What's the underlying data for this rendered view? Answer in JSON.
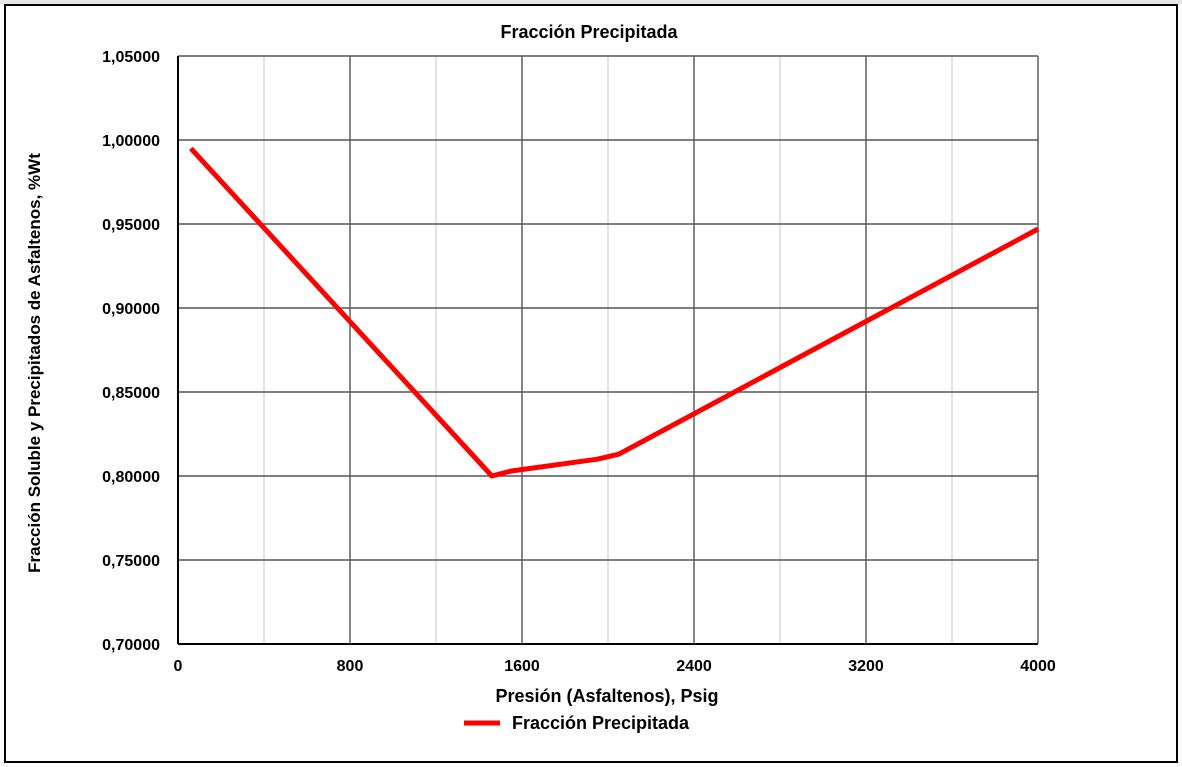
{
  "chart_data": {
    "type": "line",
    "title": "Fracción Precipitada",
    "xlabel": "Presión (Asfaltenos), Psig",
    "ylabel": "Fracción Soluble y Precipitados de Asfaltenos, %Wt",
    "xlim": [
      0,
      4000
    ],
    "ylim": [
      0.7,
      1.05
    ],
    "x_major_ticks": [
      0,
      800,
      1600,
      2400,
      3200,
      4000
    ],
    "x_tick_labels": [
      "0",
      "800",
      "1600",
      "2400",
      "3200",
      "4000"
    ],
    "x_minor_ticks": [
      400,
      1200,
      2000,
      2800,
      3600
    ],
    "y_ticks": [
      0.7,
      0.75,
      0.8,
      0.85,
      0.9,
      0.95,
      1.0,
      1.05
    ],
    "y_tick_labels": [
      "0,70000",
      "0,75000",
      "0,80000",
      "0,85000",
      "0,90000",
      "0,95000",
      "1,00000",
      "1,05000"
    ],
    "grid": true,
    "legend_position": "bottom",
    "series": [
      {
        "name": "Fracción Precipitada",
        "color": "#ff0000",
        "x": [
          60,
          1460,
          1550,
          1950,
          2050,
          4000
        ],
        "y": [
          0.995,
          0.8,
          0.803,
          0.81,
          0.813,
          0.947
        ]
      }
    ]
  }
}
